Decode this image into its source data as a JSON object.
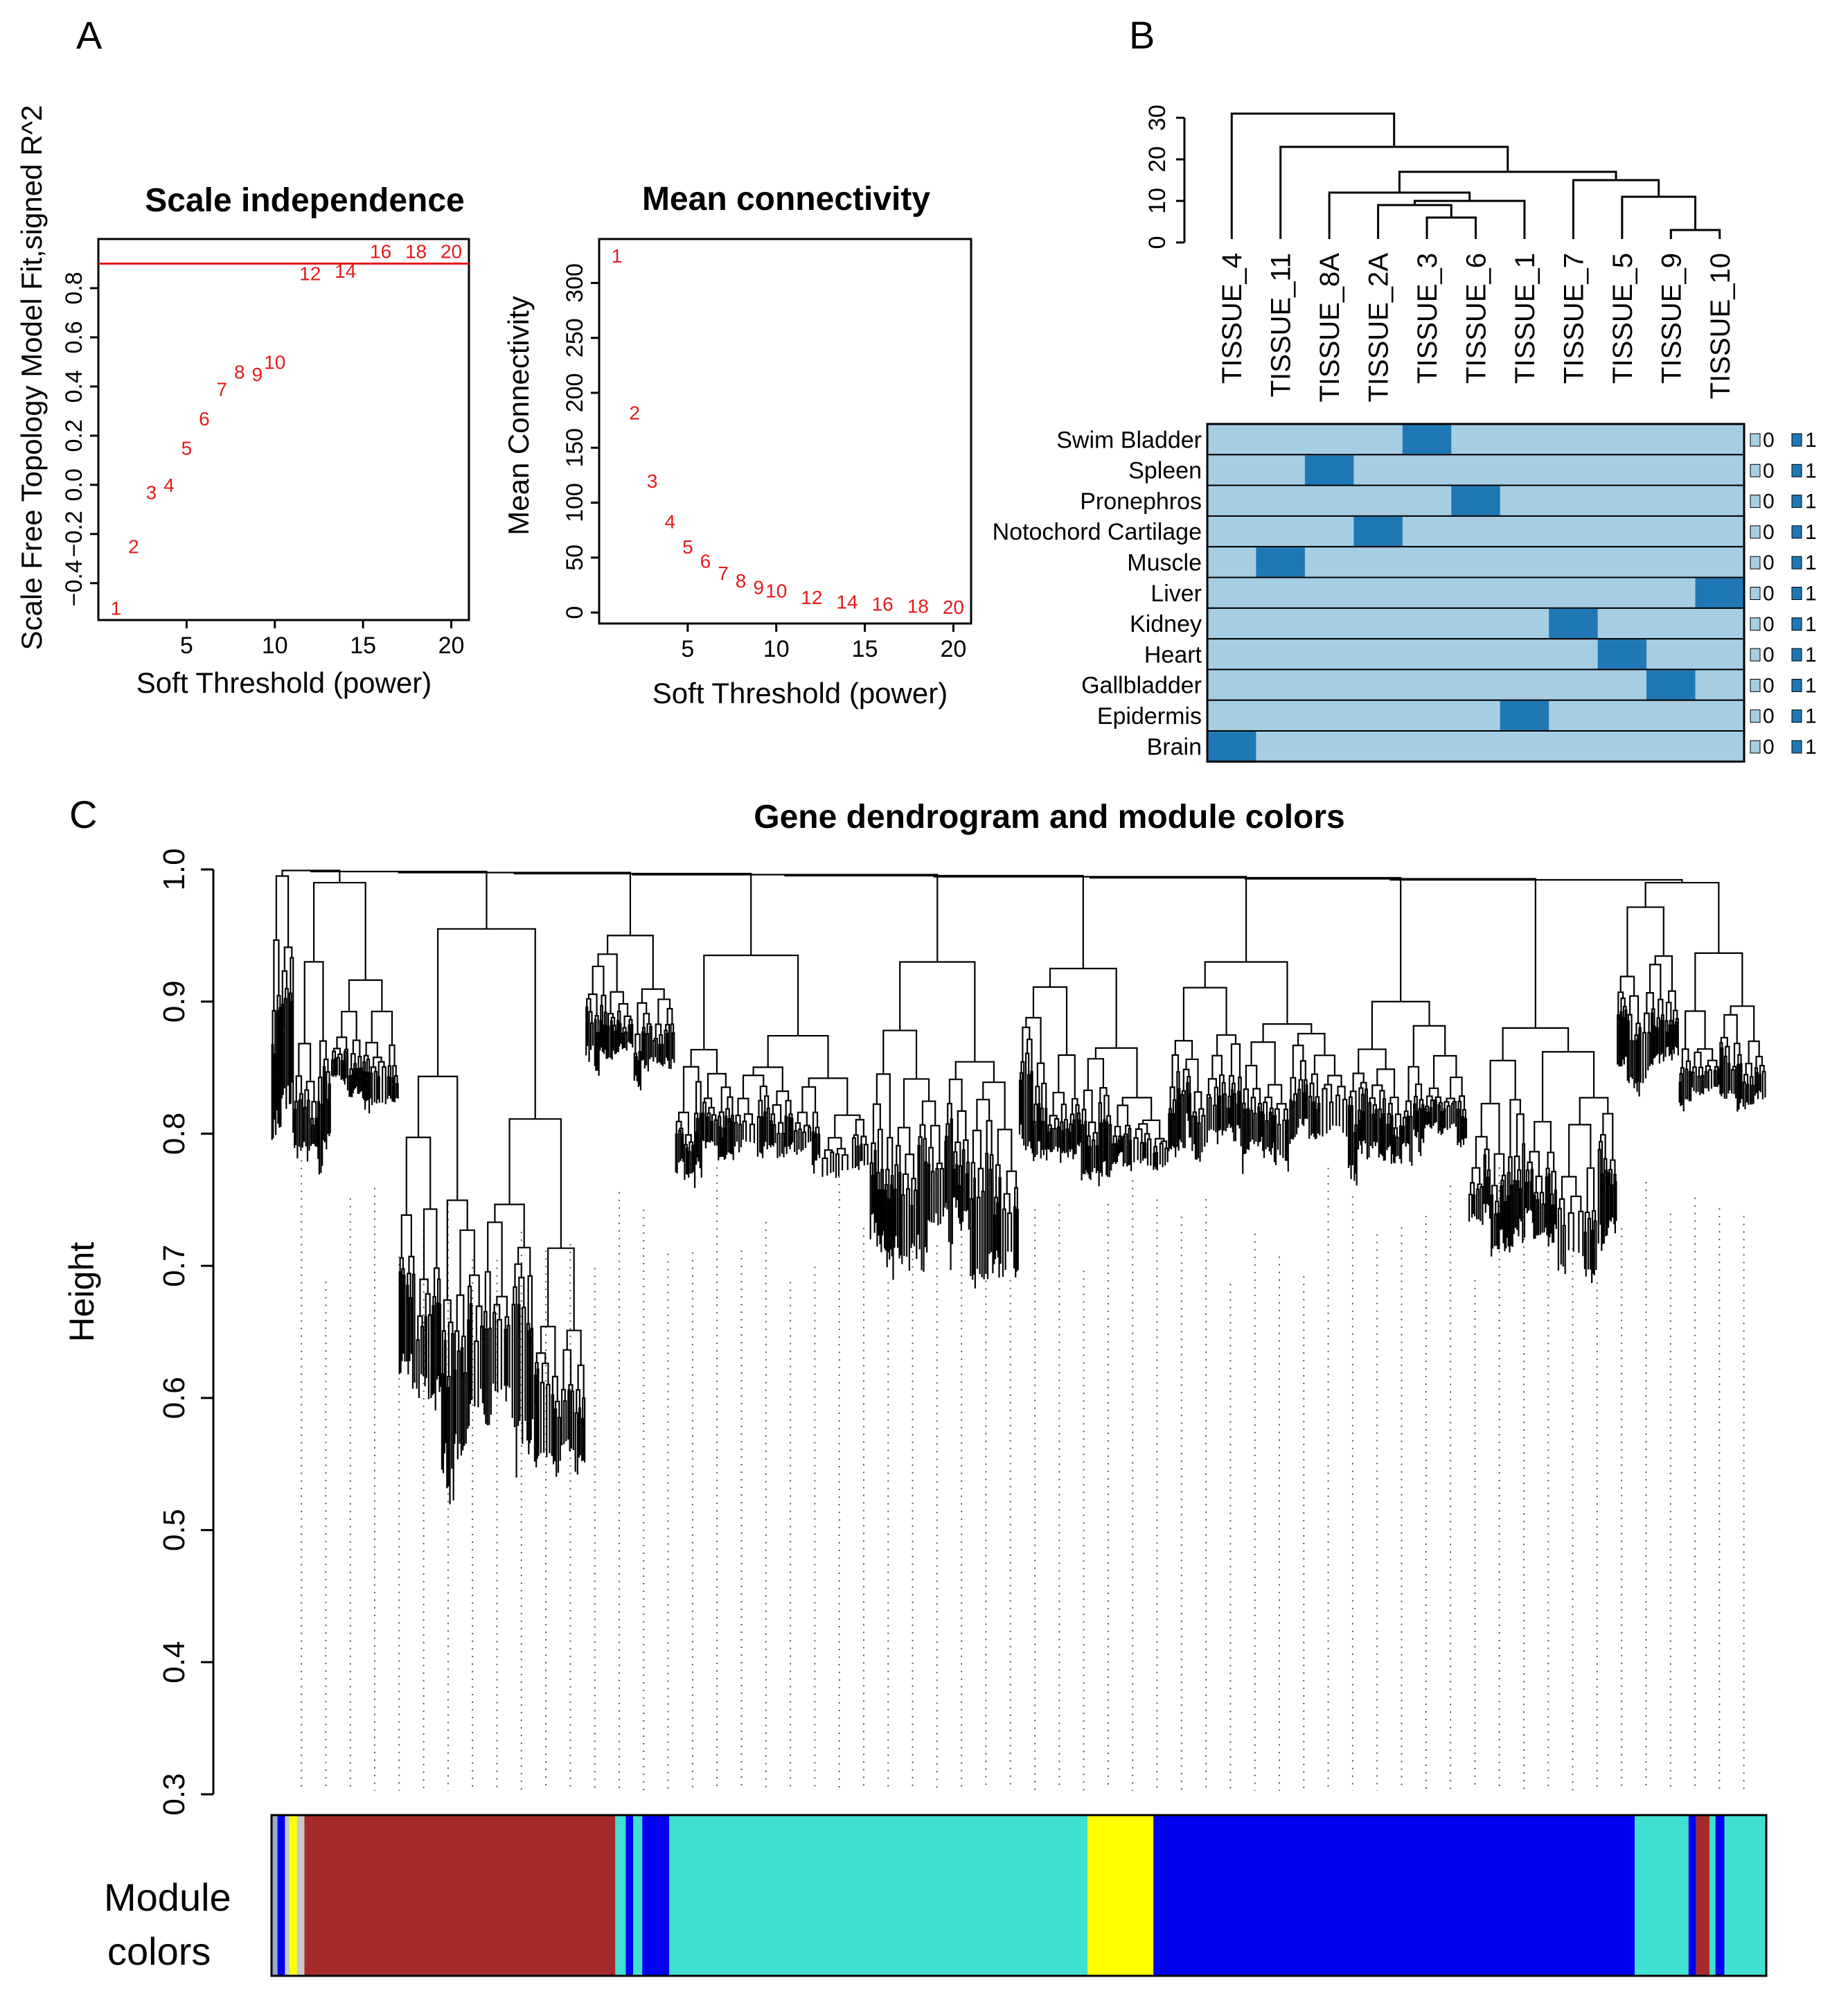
{
  "panel_letters": {
    "a": "A",
    "b": "B",
    "c": "C"
  },
  "colors": {
    "red": "#e41a1c",
    "light_blue": "#a6cee3",
    "dark_blue": "#1f78b4"
  },
  "chart_data": [
    {
      "id": "scale_independence",
      "type": "scatter",
      "title": "Scale independence",
      "xlabel": "Soft Threshold (power)",
      "ylabel": "Scale Free Topology Model Fit,signed R^2",
      "xlim": [
        0,
        21
      ],
      "ylim": [
        -0.55,
        1.0
      ],
      "xticks": [
        5,
        10,
        15,
        20
      ],
      "yticks": [
        -0.4,
        -0.2,
        0.0,
        0.2,
        0.4,
        0.6,
        0.8
      ],
      "ytick_labels": [
        "−0.4",
        "−0.2",
        "0.0",
        "0.2",
        "0.4",
        "0.6",
        "0.8"
      ],
      "hline": 0.9,
      "points": [
        {
          "x": 1,
          "y": -0.5,
          "label": "1"
        },
        {
          "x": 2,
          "y": -0.25,
          "label": "2"
        },
        {
          "x": 3,
          "y": -0.03,
          "label": "3"
        },
        {
          "x": 4,
          "y": 0.0,
          "label": "4"
        },
        {
          "x": 5,
          "y": 0.15,
          "label": "5"
        },
        {
          "x": 6,
          "y": 0.27,
          "label": "6"
        },
        {
          "x": 7,
          "y": 0.39,
          "label": "7"
        },
        {
          "x": 8,
          "y": 0.46,
          "label": "8"
        },
        {
          "x": 9,
          "y": 0.45,
          "label": "9"
        },
        {
          "x": 10,
          "y": 0.5,
          "label": "10"
        },
        {
          "x": 12,
          "y": 0.86,
          "label": "12"
        },
        {
          "x": 14,
          "y": 0.87,
          "label": "14"
        },
        {
          "x": 16,
          "y": 0.95,
          "label": "16"
        },
        {
          "x": 18,
          "y": 0.95,
          "label": "18"
        },
        {
          "x": 20,
          "y": 0.95,
          "label": "20"
        }
      ]
    },
    {
      "id": "mean_connectivity",
      "type": "scatter",
      "title": "Mean connectivity",
      "xlabel": "Soft Threshold (power)",
      "ylabel": "Mean Connectivity",
      "xlim": [
        0,
        21
      ],
      "ylim": [
        -10,
        340
      ],
      "xticks": [
        5,
        10,
        15,
        20
      ],
      "yticks": [
        0,
        50,
        100,
        150,
        200,
        250,
        300
      ],
      "points": [
        {
          "x": 1,
          "y": 325,
          "label": "1"
        },
        {
          "x": 2,
          "y": 182,
          "label": "2"
        },
        {
          "x": 3,
          "y": 120,
          "label": "3"
        },
        {
          "x": 4,
          "y": 83,
          "label": "4"
        },
        {
          "x": 5,
          "y": 60,
          "label": "5"
        },
        {
          "x": 6,
          "y": 47,
          "label": "6"
        },
        {
          "x": 7,
          "y": 36,
          "label": "7"
        },
        {
          "x": 8,
          "y": 29,
          "label": "8"
        },
        {
          "x": 9,
          "y": 23,
          "label": "9"
        },
        {
          "x": 10,
          "y": 20,
          "label": "10"
        },
        {
          "x": 12,
          "y": 14,
          "label": "12"
        },
        {
          "x": 14,
          "y": 10,
          "label": "14"
        },
        {
          "x": 16,
          "y": 8,
          "label": "16"
        },
        {
          "x": 18,
          "y": 6,
          "label": "18"
        },
        {
          "x": 20,
          "y": 5,
          "label": "20"
        }
      ]
    },
    {
      "id": "sample_clustering",
      "type": "heatmap",
      "dendrogram_axis": {
        "ylim": [
          0,
          30
        ],
        "yticks": [
          0,
          10,
          20,
          30
        ]
      },
      "samples": [
        "TISSUE_4",
        "TISSUE_11",
        "TISSUE_8A",
        "TISSUE_2A",
        "TISSUE_3",
        "TISSUE_6",
        "TISSUE_1",
        "TISSUE_7",
        "TISSUE_5",
        "TISSUE_9",
        "TISSUE_10"
      ],
      "tissues": [
        "Swim Bladder",
        "Spleen",
        "Pronephros",
        "Notochord Cartilage",
        "Muscle",
        "Liver",
        "Kidney",
        "Heart",
        "Gallbladder",
        "Epidermis",
        "Brain"
      ],
      "active_sample_index": [
        4,
        2,
        5,
        3,
        1,
        10,
        7,
        8,
        9,
        6,
        0
      ],
      "legend": {
        "zero": "0",
        "one": "1"
      },
      "merges": [
        {
          "a": "L4",
          "b": "L5",
          "height": 6
        },
        {
          "a": "M0",
          "b": "L3",
          "height": 9
        },
        {
          "a": "M1",
          "b": "L6",
          "height": 10
        },
        {
          "a": "L9",
          "b": "L10",
          "height": 3
        },
        {
          "a": "L8",
          "b": "M3",
          "height": 11
        },
        {
          "a": "M4",
          "b": "L7",
          "height": 15
        },
        {
          "a": "L2",
          "b": "M2",
          "height": 12
        },
        {
          "a": "M6",
          "b": "M5",
          "height": 17
        },
        {
          "a": "L1",
          "b": "M7",
          "height": 23
        },
        {
          "a": "L0",
          "b": "M8",
          "height": 31
        }
      ]
    },
    {
      "id": "gene_dendrogram",
      "type": "dendrogram",
      "title": "Gene dendrogram and module colors",
      "ylabel": "Height",
      "ylim": [
        0.3,
        1.0
      ],
      "yticks": [
        0.3,
        0.4,
        0.5,
        0.6,
        0.7,
        0.8,
        0.9,
        1.0
      ],
      "ytick_labels": [
        "0.3",
        "0.4",
        "0.5",
        "0.6",
        "0.7",
        "0.8",
        "0.9",
        "1.0"
      ],
      "color_bar_label_line1": "Module",
      "color_bar_label_line2": "colors",
      "module_segments": [
        {
          "color": "#9fa8c8",
          "start": 0.0,
          "end": 0.004
        },
        {
          "color": "#0000ee",
          "start": 0.004,
          "end": 0.009
        },
        {
          "color": "#c8c8c8",
          "start": 0.009,
          "end": 0.012
        },
        {
          "color": "#ffff00",
          "start": 0.012,
          "end": 0.017
        },
        {
          "color": "#c8c8c8",
          "start": 0.017,
          "end": 0.022
        },
        {
          "color": "#a52a2a",
          "start": 0.022,
          "end": 0.23
        },
        {
          "color": "#40e0d0",
          "start": 0.23,
          "end": 0.237
        },
        {
          "color": "#0000ee",
          "start": 0.237,
          "end": 0.242
        },
        {
          "color": "#40e0d0",
          "start": 0.242,
          "end": 0.248
        },
        {
          "color": "#0000ee",
          "start": 0.248,
          "end": 0.266
        },
        {
          "color": "#40e0d0",
          "start": 0.266,
          "end": 0.546
        },
        {
          "color": "#ffff00",
          "start": 0.546,
          "end": 0.59
        },
        {
          "color": "#0000ee",
          "start": 0.59,
          "end": 0.912
        },
        {
          "color": "#40e0d0",
          "start": 0.912,
          "end": 0.948
        },
        {
          "color": "#0000ee",
          "start": 0.948,
          "end": 0.953
        },
        {
          "color": "#a52a2a",
          "start": 0.953,
          "end": 0.962
        },
        {
          "color": "#40e0d0",
          "start": 0.962,
          "end": 0.966
        },
        {
          "color": "#0000ee",
          "start": 0.966,
          "end": 0.972
        },
        {
          "color": "#40e0d0",
          "start": 0.972,
          "end": 1.0
        }
      ],
      "clusters": [
        {
          "start": 0.0,
          "end": 0.015,
          "top": 0.995,
          "bottom": 0.73,
          "module": "grey"
        },
        {
          "start": 0.015,
          "end": 0.085,
          "top": 0.99,
          "bottom": 0.72,
          "module": "brown"
        },
        {
          "start": 0.085,
          "end": 0.21,
          "top": 0.955,
          "bottom": 0.35,
          "module": "brown"
        },
        {
          "start": 0.21,
          "end": 0.27,
          "top": 0.95,
          "bottom": 0.8,
          "module": "blue"
        },
        {
          "start": 0.27,
          "end": 0.4,
          "top": 0.935,
          "bottom": 0.69,
          "module": "turquoise"
        },
        {
          "start": 0.4,
          "end": 0.5,
          "top": 0.93,
          "bottom": 0.62,
          "module": "turquoise"
        },
        {
          "start": 0.5,
          "end": 0.6,
          "top": 0.925,
          "bottom": 0.7,
          "module": "yellow"
        },
        {
          "start": 0.6,
          "end": 0.72,
          "top": 0.93,
          "bottom": 0.72,
          "module": "blue"
        },
        {
          "start": 0.72,
          "end": 0.8,
          "top": 0.9,
          "bottom": 0.72,
          "module": "blue"
        },
        {
          "start": 0.8,
          "end": 0.9,
          "top": 0.88,
          "bottom": 0.62,
          "module": "blue"
        },
        {
          "start": 0.9,
          "end": 1.0,
          "top": 0.99,
          "bottom": 0.74,
          "module": "turquoise"
        }
      ]
    }
  ]
}
